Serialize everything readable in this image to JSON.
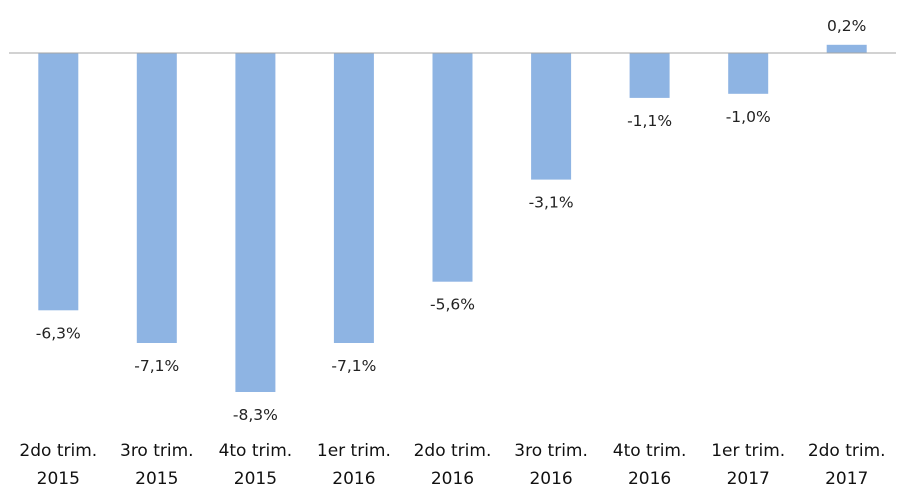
{
  "chart_data": {
    "type": "bar",
    "categories": [
      [
        "2do trim.",
        "2015"
      ],
      [
        "3ro trim.",
        "2015"
      ],
      [
        "4to trim.",
        "2015"
      ],
      [
        "1er trim.",
        "2016"
      ],
      [
        "2do trim.",
        "2016"
      ],
      [
        "3ro trim.",
        "2016"
      ],
      [
        "4to trim.",
        "2016"
      ],
      [
        "1er trim.",
        "2017"
      ],
      [
        "2do trim.",
        "2017"
      ]
    ],
    "values": [
      -6.3,
      -7.1,
      -8.3,
      -7.1,
      -5.6,
      -3.1,
      -1.1,
      -1.0,
      0.2
    ],
    "data_labels": [
      "-6,3%",
      "-7,1%",
      "-8,3%",
      "-7,1%",
      "-5,6%",
      "-3,1%",
      "-1,1%",
      "-1,0%",
      "0,2%"
    ],
    "title": "",
    "xlabel": "",
    "ylabel": "",
    "ylim": [
      -8.3,
      0.2
    ],
    "grid": false,
    "legend": "none",
    "colors": {
      "bar": "#8eb4e3",
      "axis": "#a6a6a6"
    }
  }
}
